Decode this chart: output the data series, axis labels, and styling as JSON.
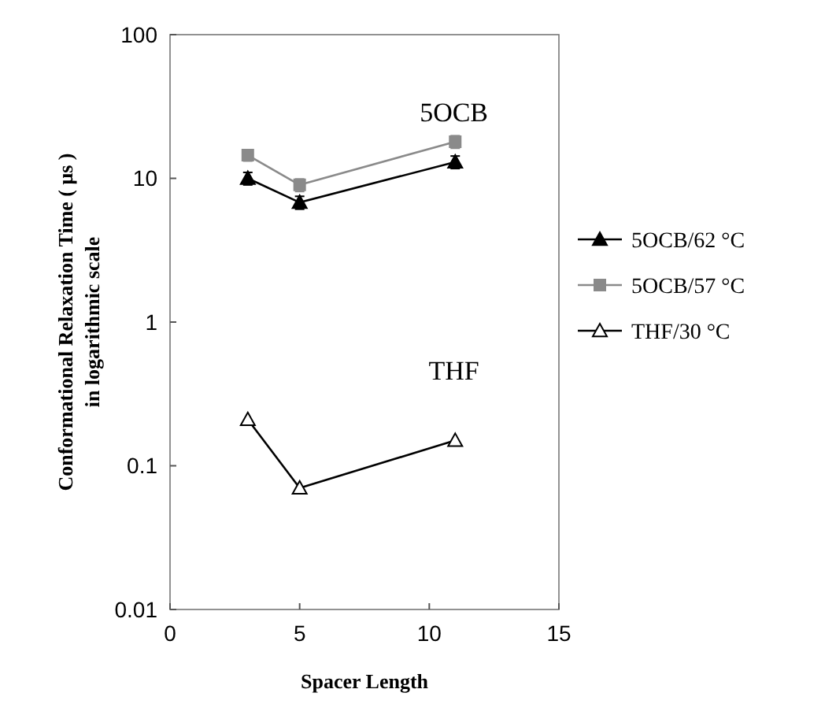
{
  "chart_data": {
    "type": "line",
    "xlabel": "Spacer Length",
    "ylabel": "Conformational Relaxation Time ( μs )\nin logarithmic scale",
    "x": [
      3,
      5,
      11
    ],
    "series": [
      {
        "name": "5OCB/62 °C",
        "color": "#000000",
        "marker": "triangle",
        "values": [
          10,
          6.8,
          13
        ],
        "errors": [
          1,
          0.7,
          1.3
        ]
      },
      {
        "name": "5OCB/57 °C",
        "color": "#8a8a8a",
        "marker": "square",
        "values": [
          14.5,
          9,
          18
        ],
        "errors": [
          1.3,
          0.9,
          1.8
        ]
      },
      {
        "name": "THF/30 °C",
        "color": "#000000",
        "marker": "triangle",
        "values": [
          0.21,
          0.07,
          0.15
        ]
      }
    ],
    "annotations": [
      "5OCB",
      "THF"
    ],
    "log": "y",
    "xlim": [
      0,
      15
    ],
    "xticks": [
      0,
      5,
      10,
      15
    ],
    "ylim": [
      0.01,
      100
    ],
    "yticks": [
      {
        "value": 0.01,
        "label": "0.01"
      },
      {
        "value": 0.1,
        "label": "0.1"
      },
      1,
      10,
      100
    ],
    "grid": false,
    "legend": "right"
  }
}
